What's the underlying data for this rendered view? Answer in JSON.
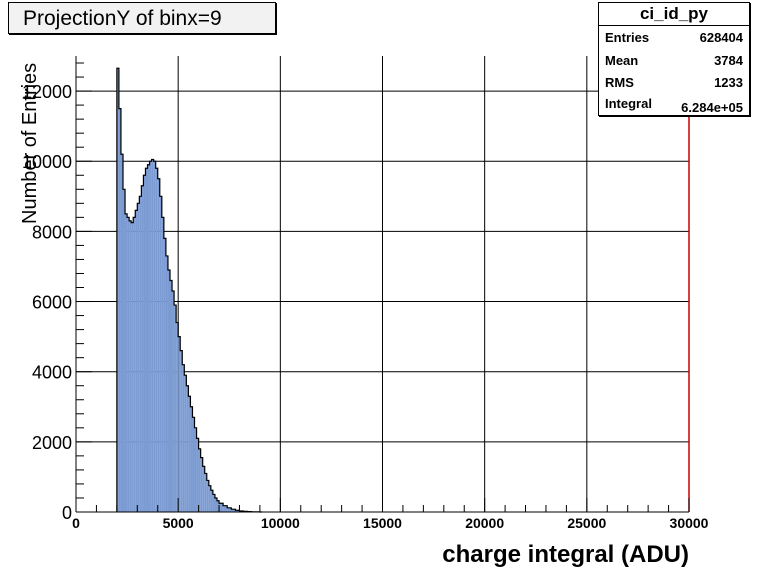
{
  "chart_data": {
    "type": "bar",
    "title": "ProjectionY of binx=9",
    "xlabel": "charge integral (ADU)",
    "ylabel": "Number of Entries",
    "xlim": [
      0,
      30000
    ],
    "ylim": [
      0,
      13000
    ],
    "x_ticks": [
      0,
      5000,
      10000,
      15000,
      20000,
      25000,
      30000
    ],
    "y_ticks": [
      0,
      2000,
      4000,
      6000,
      8000,
      10000,
      12000
    ],
    "grid": true,
    "fill_color": "#7b9bd2",
    "edge_color": "#000000",
    "frame_right_color": "#cc0000",
    "bin_width": 100,
    "x": [
      2000,
      2100,
      2200,
      2300,
      2400,
      2500,
      2600,
      2700,
      2800,
      2900,
      3000,
      3100,
      3200,
      3300,
      3400,
      3500,
      3600,
      3700,
      3800,
      3900,
      4000,
      4100,
      4200,
      4300,
      4400,
      4500,
      4600,
      4700,
      4800,
      4900,
      5000,
      5100,
      5200,
      5300,
      5400,
      5500,
      5600,
      5700,
      5800,
      5900,
      6000,
      6100,
      6200,
      6300,
      6400,
      6500,
      6600,
      6700,
      6800,
      6900,
      7000,
      7200,
      7400,
      7600,
      7800,
      8000,
      8200,
      8400,
      8600,
      8800,
      9000
    ],
    "values": [
      12650,
      11500,
      10200,
      9200,
      8500,
      8400,
      8300,
      8250,
      8400,
      8600,
      8800,
      9000,
      9300,
      9600,
      9800,
      9900,
      10000,
      10050,
      10000,
      9800,
      9500,
      9000,
      8400,
      7800,
      7300,
      6900,
      6600,
      6300,
      5900,
      5400,
      5000,
      4600,
      4200,
      3900,
      3600,
      3300,
      3000,
      2700,
      2400,
      2100,
      1800,
      1550,
      1300,
      1100,
      900,
      750,
      620,
      500,
      400,
      320,
      250,
      180,
      120,
      80,
      50,
      30,
      18,
      10,
      5,
      3,
      1
    ],
    "stats": {
      "name": "ci_id_py",
      "rows": [
        {
          "key": "Entries",
          "value": "628404"
        },
        {
          "key": "Mean",
          "value": "3784"
        },
        {
          "key": "RMS",
          "value": "1233"
        },
        {
          "key": "Integral",
          "value": "6.284e+05"
        }
      ]
    }
  }
}
